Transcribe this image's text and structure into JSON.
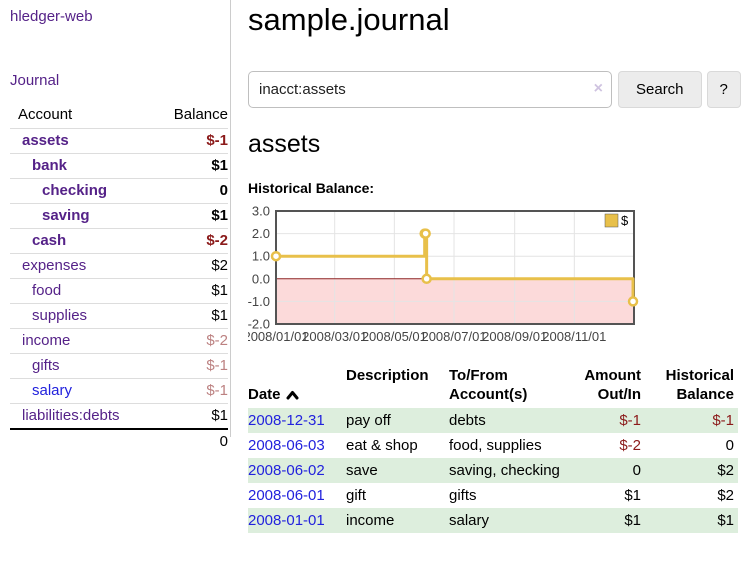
{
  "app": {
    "brand": "hledger-web"
  },
  "colors": {
    "link_visited": "#552288",
    "link_unvisited": "#2222dd",
    "negative_strong": "#8b1a1a",
    "negative_muted": "#bc8181",
    "row_alt_green": "#ddeedd",
    "divider": "#cccccc",
    "button_bg": "#ececec",
    "button_border": "#d9d9d9",
    "input_border": "#bfbfbf",
    "clear_icon": "#cfc3e0"
  },
  "sidebar": {
    "journal_label": "Journal",
    "accounts_table": {
      "headers": [
        "Account",
        "Balance"
      ],
      "rows": [
        {
          "name": "assets",
          "indent": 1,
          "balance": "$-1",
          "in_query": true,
          "balance_tone": "negative-strong"
        },
        {
          "name": "bank",
          "indent": 2,
          "balance": "$1",
          "in_query": true,
          "balance_tone": "normal"
        },
        {
          "name": "checking",
          "indent": 3,
          "balance": "0",
          "in_query": true,
          "balance_tone": "normal"
        },
        {
          "name": "saving",
          "indent": 3,
          "balance": "$1",
          "in_query": true,
          "balance_tone": "normal"
        },
        {
          "name": "cash",
          "indent": 2,
          "balance": "$-2",
          "in_query": true,
          "balance_tone": "negative-strong"
        },
        {
          "name": "expenses",
          "indent": 1,
          "balance": "$2",
          "in_query": false,
          "balance_tone": "normal"
        },
        {
          "name": "food",
          "indent": 2,
          "balance": "$1",
          "in_query": false,
          "balance_tone": "normal"
        },
        {
          "name": "supplies",
          "indent": 2,
          "balance": "$1",
          "in_query": false,
          "balance_tone": "normal"
        },
        {
          "name": "income",
          "indent": 1,
          "balance": "$-2",
          "in_query": false,
          "balance_tone": "negative-muted"
        },
        {
          "name": "gifts",
          "indent": 2,
          "balance": "$-1",
          "in_query": false,
          "balance_tone": "negative-muted"
        },
        {
          "name": "salary",
          "indent": 2,
          "balance": "$-1",
          "in_query": false,
          "balance_tone": "negative-muted",
          "link_state": "unvisited"
        },
        {
          "name": "liabilities:debts",
          "indent": 1,
          "balance": "$1",
          "in_query": false,
          "balance_tone": "normal"
        }
      ],
      "total": "0"
    }
  },
  "header": {
    "title": "sample.journal"
  },
  "search": {
    "value": "inacct:assets",
    "clear_icon": "×",
    "search_label": "Search",
    "help_label": "?"
  },
  "register": {
    "heading": "assets",
    "chart_label": "Historical Balance:",
    "table": {
      "headers": [
        "Date",
        "Description",
        "To/From\nAccount(s)",
        "Amount\nOut/In",
        "Historical\nBalance"
      ],
      "sort": {
        "column": "Date",
        "direction": "ascending"
      },
      "rows": [
        {
          "date": "2008-12-31",
          "description": "pay off",
          "accounts": "debts",
          "amount": "$-1",
          "balance": "$-1",
          "amount_tone": "negative",
          "balance_tone": "negative"
        },
        {
          "date": "2008-06-03",
          "description": "eat & shop",
          "accounts": "food, supplies",
          "amount": "$-2",
          "balance": "0",
          "amount_tone": "negative",
          "balance_tone": "normal"
        },
        {
          "date": "2008-06-02",
          "description": "save",
          "accounts": "saving, checking",
          "amount": "0",
          "balance": "$2",
          "amount_tone": "normal",
          "balance_tone": "normal"
        },
        {
          "date": "2008-06-01",
          "description": "gift",
          "accounts": "gifts",
          "amount": "$1",
          "balance": "$2",
          "amount_tone": "normal",
          "balance_tone": "normal"
        },
        {
          "date": "2008-01-01",
          "description": "income",
          "accounts": "salary",
          "amount": "$1",
          "balance": "$1",
          "amount_tone": "normal",
          "balance_tone": "normal"
        }
      ]
    }
  },
  "chart_data": {
    "type": "line",
    "title": "Historical Balance",
    "series": [
      {
        "name": "$",
        "style": "steps",
        "points": [
          [
            "2008-01-01",
            1
          ],
          [
            "2008-06-01",
            2
          ],
          [
            "2008-06-02",
            2
          ],
          [
            "2008-06-03",
            0
          ],
          [
            "2008-12-31",
            -1
          ]
        ]
      }
    ],
    "x_range": [
      "2008-01-01",
      "2009-01-01"
    ],
    "ylim": [
      -2,
      3
    ],
    "yticks": [
      {
        "value": 3,
        "label": "3.0"
      },
      {
        "value": 2,
        "label": "2.0"
      },
      {
        "value": 1,
        "label": "1.0"
      },
      {
        "value": 0,
        "label": "0.0"
      },
      {
        "value": -1,
        "label": "-1.0"
      },
      {
        "value": -2,
        "label": "-2.0"
      }
    ],
    "xticks": [
      {
        "date": "2008-01-01",
        "label": "2008/01/01"
      },
      {
        "date": "2008-03-01",
        "label": "2008/03/01"
      },
      {
        "date": "2008-05-01",
        "label": "2008/05/01"
      },
      {
        "date": "2008-07-01",
        "label": "2008/07/01"
      },
      {
        "date": "2008-09-01",
        "label": "2008/09/01"
      },
      {
        "date": "2008-11-01",
        "label": "2008/11/01"
      }
    ],
    "legend": {
      "label": "$",
      "position": "top-right"
    },
    "grid": true,
    "negative_region": {
      "below": 0
    },
    "colors": {
      "line": "#e8c04a",
      "marker_fill": "#ffffff",
      "negative_fill": "#fcdada",
      "zero_line": "#8e2424",
      "grid": "#e4e4e4",
      "border": "#545454",
      "tick_text": "#444444"
    }
  }
}
